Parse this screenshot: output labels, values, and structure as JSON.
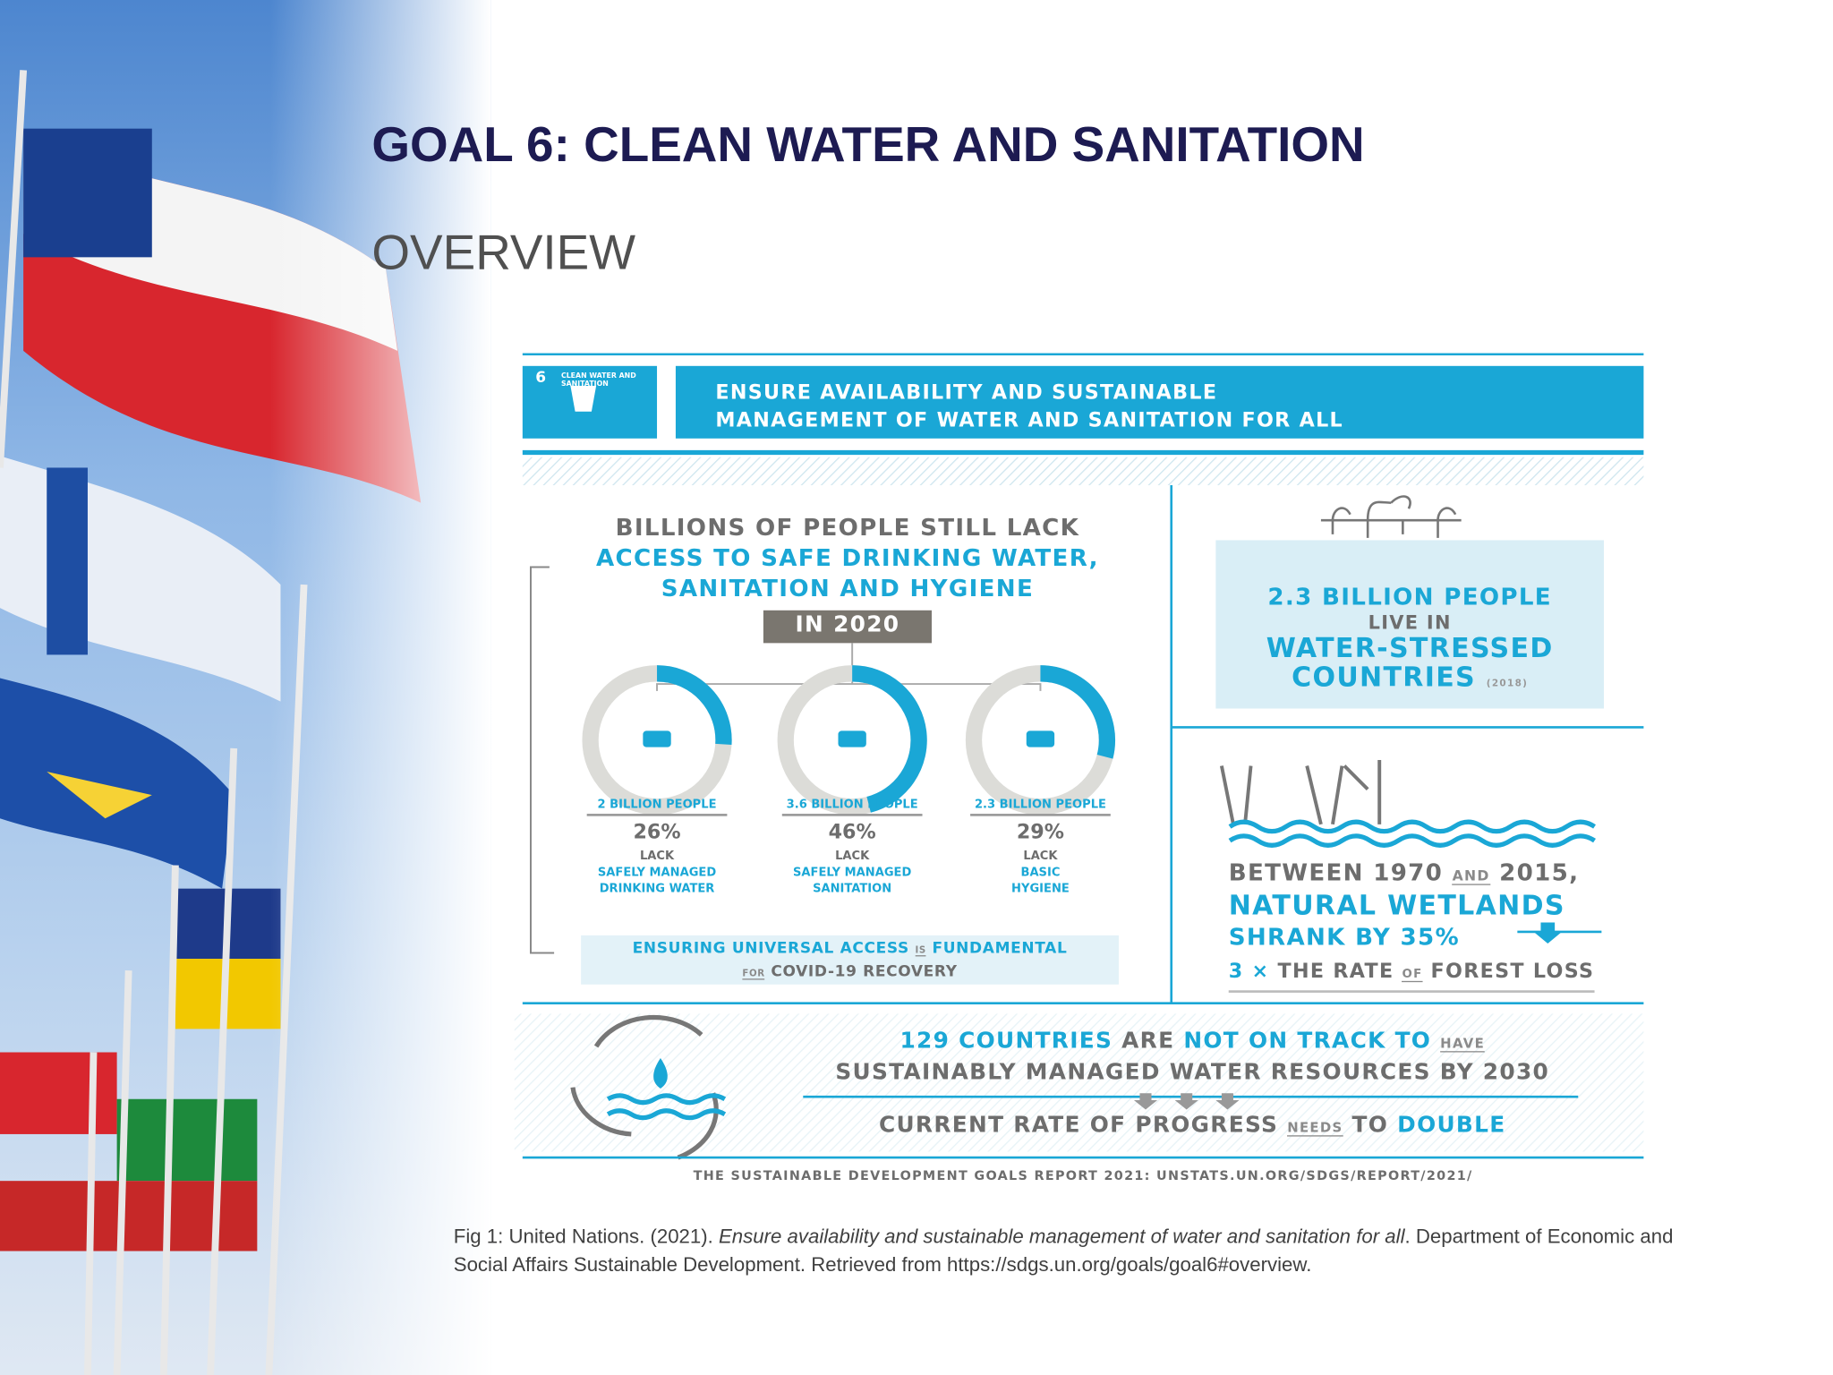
{
  "header": {
    "title": "GOAL 6: CLEAN WATER AND SANITATION",
    "subtitle": "OVERVIEW"
  },
  "infographic": {
    "badge": {
      "number": "6",
      "name": "CLEAN WATER AND SANITATION"
    },
    "banner": [
      "ENSURE AVAILABILITY AND SUSTAINABLE",
      "MANAGEMENT OF WATER AND SANITATION FOR ALL"
    ],
    "lack": {
      "heading": [
        "BILLIONS OF PEOPLE STILL LACK",
        "ACCESS TO SAFE DRINKING WATER,",
        "SANITATION AND HYGIENE"
      ],
      "year": "IN 2020",
      "stats": [
        {
          "people": "2 BILLION PEOPLE",
          "value": 26,
          "value_label": "26%",
          "desc": [
            "LACK",
            "SAFELY MANAGED",
            "DRINKING WATER"
          ]
        },
        {
          "people": "3.6 BILLION PEOPLE",
          "value": 46,
          "value_label": "46%",
          "desc": [
            "LACK",
            "SAFELY MANAGED",
            "SANITATION"
          ]
        },
        {
          "people": "2.3 BILLION PEOPLE",
          "value": 29,
          "value_label": "29%",
          "desc": [
            "LACK",
            "BASIC",
            "HYGIENE"
          ]
        }
      ],
      "note": [
        "ENSURING UNIVERSAL ACCESS",
        "IS",
        "FUNDAMENTAL",
        "FOR",
        "COVID-19 RECOVERY"
      ]
    },
    "stress": {
      "lines": [
        "2.3 BILLION PEOPLE",
        "LIVE IN",
        "WATER-STRESSED",
        "COUNTRIES"
      ],
      "year": "(2018)"
    },
    "wetlands": {
      "line1": [
        "BETWEEN 1970",
        "AND",
        "2015,"
      ],
      "line2": "NATURAL WETLANDS",
      "line3": "SHRANK BY 35%",
      "line4": [
        "3 ×",
        "THE RATE",
        "OF",
        "FOREST LOSS"
      ]
    },
    "track": {
      "line1": [
        "129 COUNTRIES",
        "ARE",
        "NOT ON TRACK TO",
        "HAVE"
      ],
      "line2": "SUSTAINABLY MANAGED WATER RESOURCES BY 2030",
      "line3": [
        "CURRENT RATE OF PROGRESS",
        "NEEDS",
        "TO",
        "DOUBLE"
      ]
    },
    "source": "THE SUSTAINABLE DEVELOPMENT GOALS REPORT 2021: UNSTATS.UN.ORG/SDGS/REPORT/2021/"
  },
  "caption": {
    "lead": "Fig 1: United Nations. (2021).",
    "title": "Ensure availability and sustainable management of water and sanitation for all",
    "rest": ". Department of Economic and Social Affairs Sustainable Development. Retrieved from https://sdgs.un.org/goals/goal6#overview."
  }
}
